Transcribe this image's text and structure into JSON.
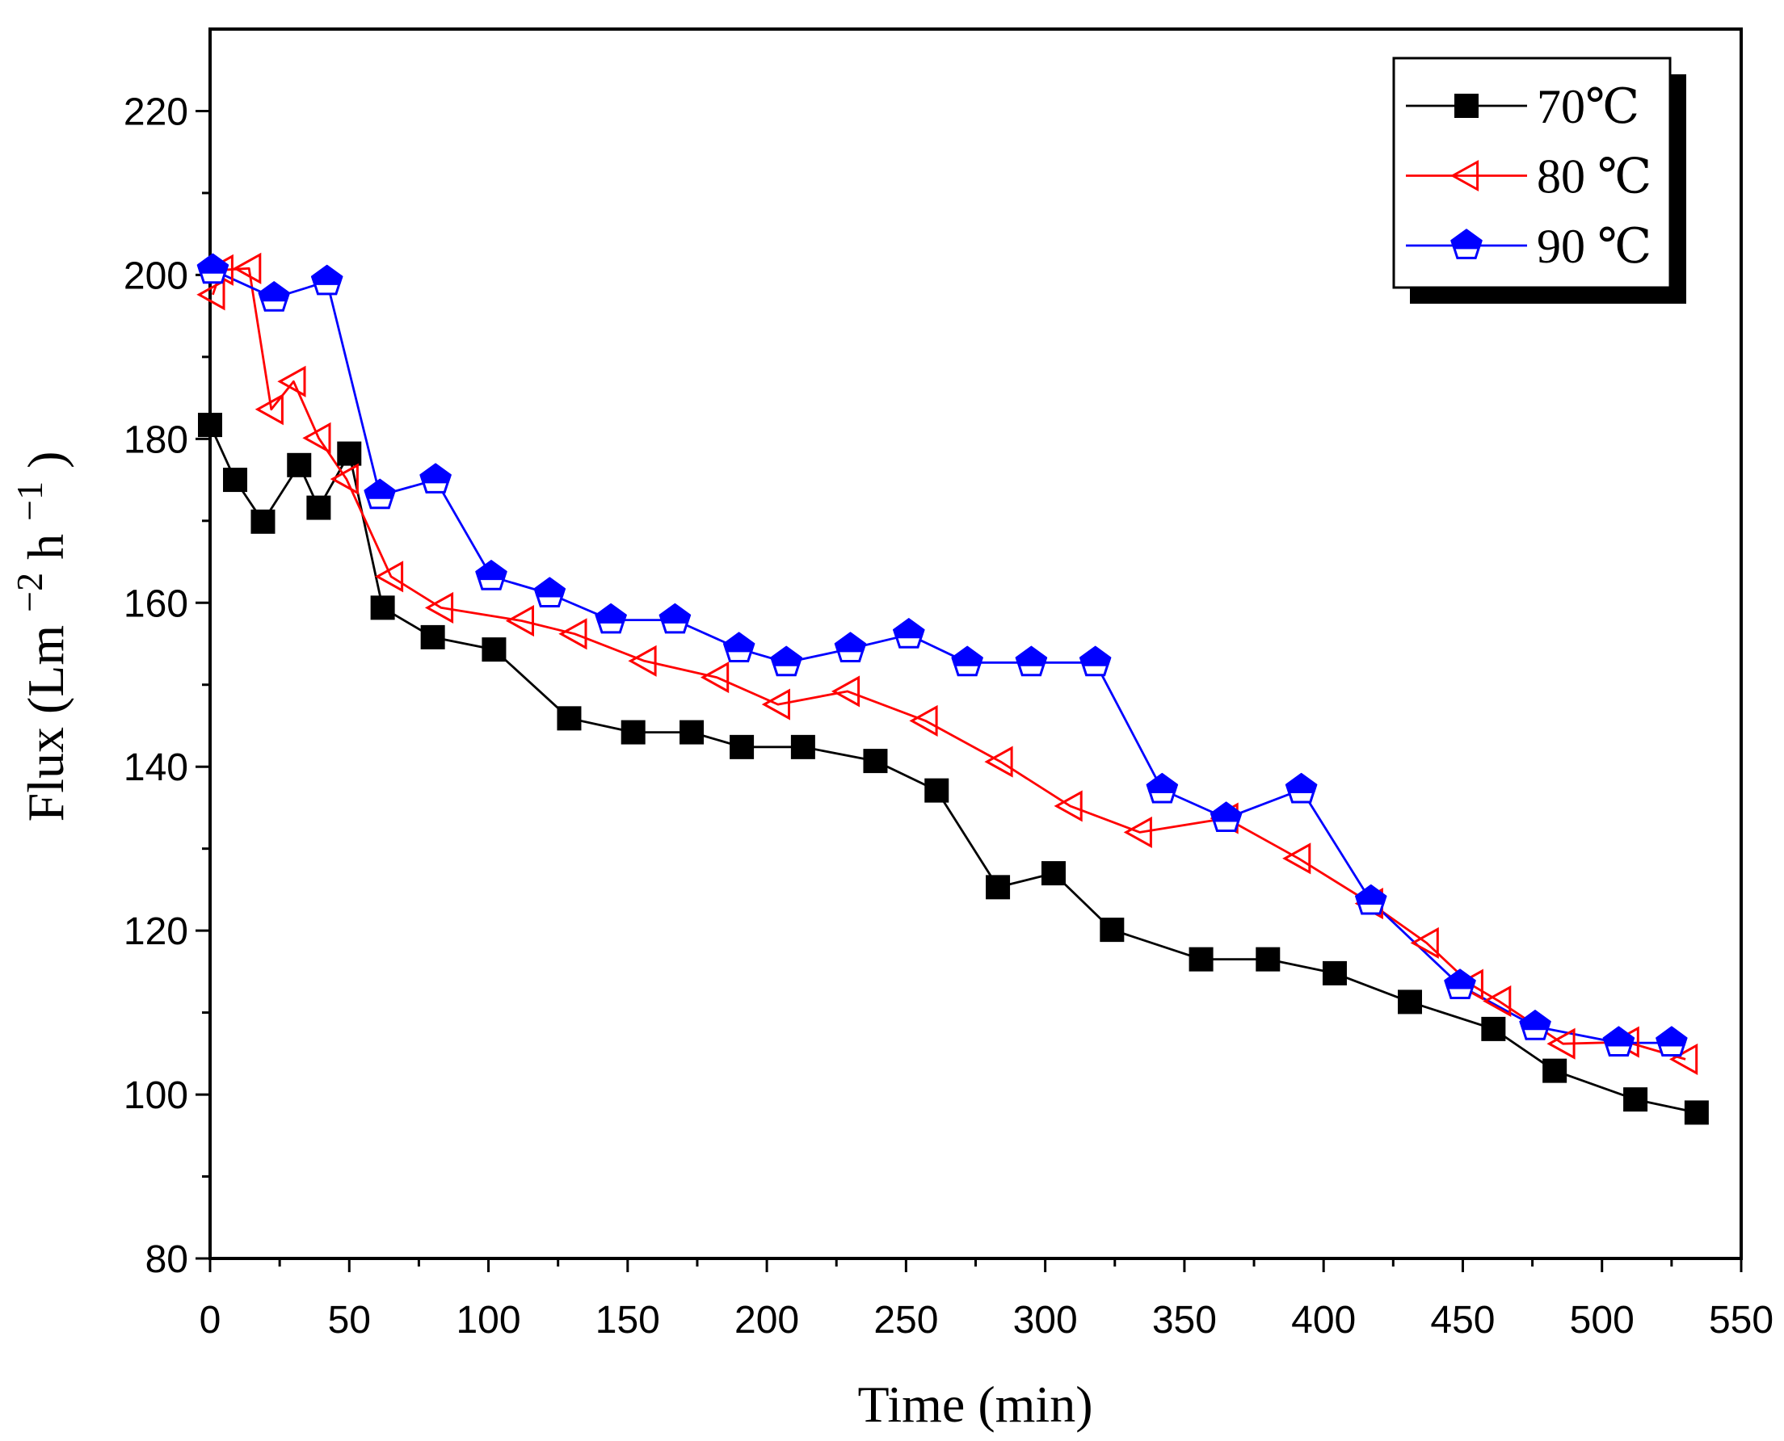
{
  "chart_data": {
    "type": "line",
    "title": "",
    "xlabel": "Time (min)",
    "ylabel": {
      "base": "Flux (Lm",
      "exp1": "−2",
      "unit2": "h",
      "exp2": "−1",
      "close": ")"
    },
    "xlim": [
      0,
      550
    ],
    "ylim": [
      80,
      230
    ],
    "xticks": [
      0,
      50,
      100,
      150,
      200,
      250,
      300,
      350,
      400,
      450,
      500,
      550
    ],
    "yticks": [
      80,
      100,
      120,
      140,
      160,
      180,
      200,
      220
    ],
    "grid": false,
    "legend": "top-right",
    "series": [
      {
        "name": "70℃",
        "color": "#000000",
        "marker": "filled-square",
        "x": [
          0,
          9,
          19,
          32,
          39,
          50,
          62,
          80,
          102,
          129,
          152,
          173,
          191,
          213,
          239,
          261,
          283,
          303,
          324,
          356,
          380,
          404,
          431,
          461,
          483,
          512,
          534
        ],
        "y": [
          181.7,
          175.0,
          169.9,
          176.8,
          171.6,
          178.2,
          159.4,
          155.8,
          154.3,
          145.9,
          144.2,
          144.2,
          142.4,
          142.4,
          140.7,
          137.1,
          125.3,
          127.0,
          120.1,
          116.5,
          116.5,
          114.8,
          111.3,
          108.0,
          102.9,
          99.4,
          97.8
        ]
      },
      {
        "name": "80 ℃",
        "color": "#ff0000",
        "marker": "open-left-triangle",
        "x": [
          1,
          4,
          14,
          22,
          30,
          39,
          49,
          65,
          83,
          112,
          131,
          156,
          182,
          204,
          229,
          257,
          284,
          309,
          334,
          365,
          391,
          417,
          437,
          453,
          463,
          486,
          509,
          530
        ],
        "y": [
          197.6,
          200.6,
          200.8,
          183.6,
          187.0,
          180.1,
          175.1,
          163.2,
          159.4,
          157.8,
          156.2,
          152.9,
          150.9,
          147.6,
          149.2,
          145.6,
          140.6,
          135.2,
          132.0,
          133.7,
          128.8,
          123.3,
          118.5,
          113.4,
          111.4,
          106.2,
          106.4,
          104.3
        ]
      },
      {
        "name": "90 ℃",
        "color": "#0000ff",
        "marker": "half-filled-pentagon",
        "x": [
          1,
          23,
          42,
          61,
          81,
          101,
          122,
          144,
          167,
          190,
          207,
          230,
          251,
          272,
          295,
          318,
          342,
          365,
          392,
          417,
          449,
          476,
          506,
          525
        ],
        "y": [
          200.6,
          197.2,
          199.2,
          173.1,
          175.0,
          163.2,
          161.1,
          157.9,
          157.9,
          154.4,
          152.7,
          154.4,
          156.1,
          152.7,
          152.7,
          152.7,
          137.2,
          133.7,
          137.2,
          123.6,
          113.3,
          108.3,
          106.3,
          106.3
        ]
      }
    ]
  }
}
